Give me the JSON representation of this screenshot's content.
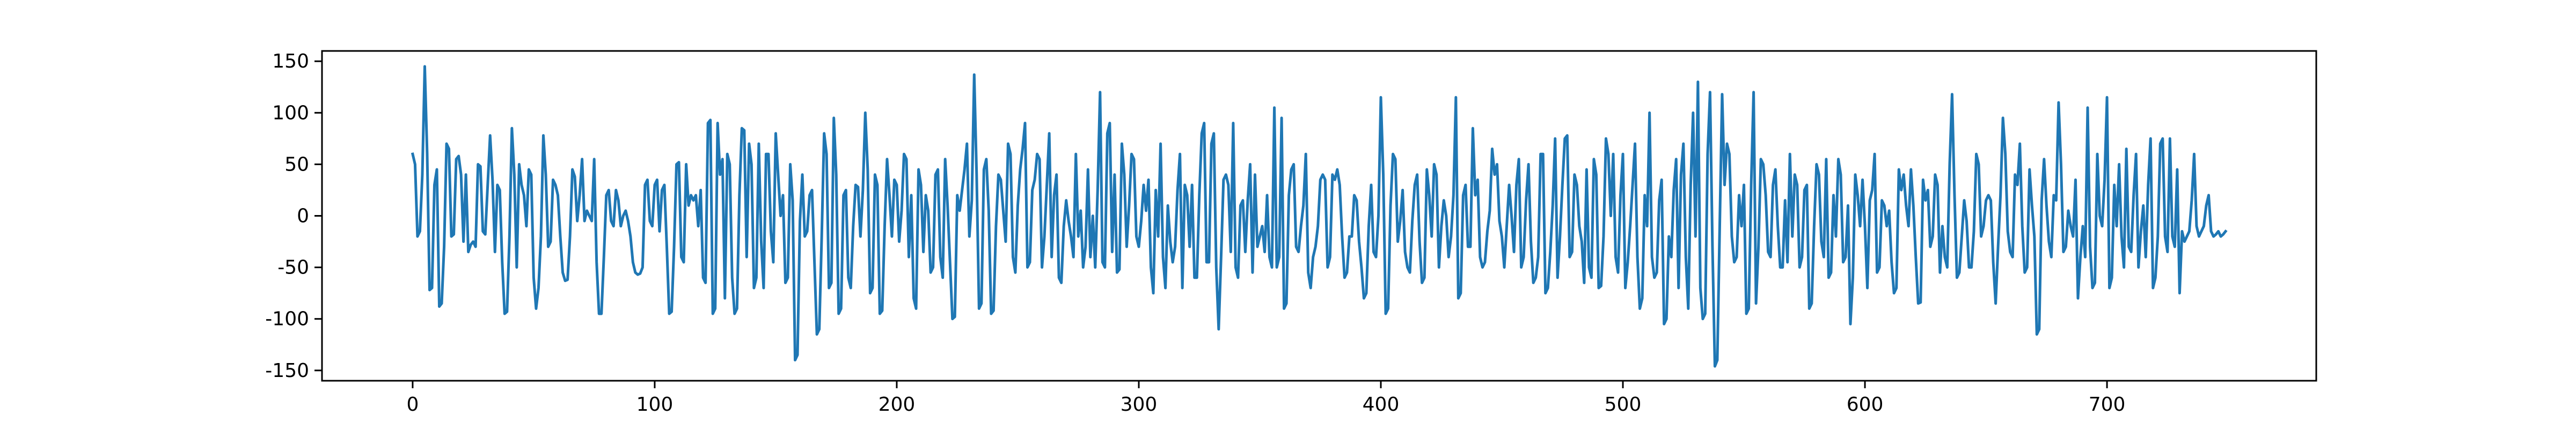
{
  "chart_data": {
    "type": "line",
    "color": "#1f77b4",
    "x": [
      0,
      1,
      2,
      3,
      4,
      5,
      6,
      7,
      8,
      9,
      10,
      11,
      12,
      13,
      14,
      15,
      16,
      17,
      18,
      19,
      20,
      21,
      22,
      23,
      24,
      25,
      26,
      27,
      28,
      29,
      30,
      31,
      32,
      33,
      34,
      35,
      36,
      37,
      38,
      39,
      40,
      41,
      42,
      43,
      44,
      45,
      46,
      47,
      48,
      49,
      50,
      51,
      52,
      53,
      54,
      55,
      56,
      57,
      58,
      59,
      60,
      61,
      62,
      63,
      64,
      65,
      66,
      67,
      68,
      69,
      70,
      71,
      72,
      73,
      74,
      75,
      76,
      77,
      78,
      79,
      80,
      81,
      82,
      83,
      84,
      85,
      86,
      87,
      88,
      89,
      90,
      91,
      92,
      93,
      94,
      95,
      96,
      97,
      98,
      99,
      100,
      101,
      102,
      103,
      104,
      105,
      106,
      107,
      108,
      109,
      110,
      111,
      112,
      113,
      114,
      115,
      116,
      117,
      118,
      119,
      120,
      121,
      122,
      123,
      124,
      125,
      126,
      127,
      128,
      129,
      130,
      131,
      132,
      133,
      134,
      135,
      136,
      137,
      138,
      139,
      140,
      141,
      142,
      143,
      144,
      145,
      146,
      147,
      148,
      149,
      150,
      151,
      152,
      153,
      154,
      155,
      156,
      157,
      158,
      159,
      160,
      161,
      162,
      163,
      164,
      165,
      166,
      167,
      168,
      169,
      170,
      171,
      172,
      173,
      174,
      175,
      176,
      177,
      178,
      179,
      180,
      181,
      182,
      183,
      184,
      185,
      186,
      187,
      188,
      189,
      190,
      191,
      192,
      193,
      194,
      195,
      196,
      197,
      198,
      199,
      200,
      201,
      202,
      203,
      204,
      205,
      206,
      207,
      208,
      209,
      210,
      211,
      212,
      213,
      214,
      215,
      216,
      217,
      218,
      219,
      220,
      221,
      222,
      223,
      224,
      225,
      226,
      227,
      228,
      229,
      230,
      231,
      232,
      233,
      234,
      235,
      236,
      237,
      238,
      239,
      240,
      241,
      242,
      243,
      244,
      245,
      246,
      247,
      248,
      249,
      250,
      251,
      252,
      253,
      254,
      255,
      256,
      257,
      258,
      259,
      260,
      261,
      262,
      263,
      264,
      265,
      266,
      267,
      268,
      269,
      270,
      271,
      272,
      273,
      274,
      275,
      276,
      277,
      278,
      279,
      280,
      281,
      282,
      283,
      284,
      285,
      286,
      287,
      288,
      289,
      290,
      291,
      292,
      293,
      294,
      295,
      296,
      297,
      298,
      299,
      300,
      301,
      302,
      303,
      304,
      305,
      306,
      307,
      308,
      309,
      310,
      311,
      312,
      313,
      314,
      315,
      316,
      317,
      318,
      319,
      320,
      321,
      322,
      323,
      324,
      325,
      326,
      327,
      328,
      329,
      330,
      331,
      332,
      333,
      334,
      335,
      336,
      337,
      338,
      339,
      340,
      341,
      342,
      343,
      344,
      345,
      346,
      347,
      348,
      349,
      350,
      351,
      352,
      353,
      354,
      355,
      356,
      357,
      358,
      359,
      360,
      361,
      362,
      363,
      364,
      365,
      366,
      367,
      368,
      369,
      370,
      371,
      372,
      373,
      374,
      375,
      376,
      377,
      378,
      379,
      380,
      381,
      382,
      383,
      384,
      385,
      386,
      387,
      388,
      389,
      390,
      391,
      392,
      393,
      394,
      395,
      396,
      397,
      398,
      399,
      400,
      401,
      402,
      403,
      404,
      405,
      406,
      407,
      408,
      409,
      410,
      411,
      412,
      413,
      414,
      415,
      416,
      417,
      418,
      419,
      420,
      421,
      422,
      423,
      424,
      425,
      426,
      427,
      428,
      429,
      430,
      431,
      432,
      433,
      434,
      435,
      436,
      437,
      438,
      439,
      440,
      441,
      442,
      443,
      444,
      445,
      446,
      447,
      448,
      449,
      450,
      451,
      452,
      453,
      454,
      455,
      456,
      457,
      458,
      459,
      460,
      461,
      462,
      463,
      464,
      465,
      466,
      467,
      468,
      469,
      470,
      471,
      472,
      473,
      474,
      475,
      476,
      477,
      478,
      479,
      480,
      481,
      482,
      483,
      484,
      485,
      486,
      487,
      488,
      489,
      490,
      491,
      492,
      493,
      494,
      495,
      496,
      497,
      498,
      499,
      500,
      501,
      502,
      503,
      504,
      505,
      506,
      507,
      508,
      509,
      510,
      511,
      512,
      513,
      514,
      515,
      516,
      517,
      518,
      519,
      520,
      521,
      522,
      523,
      524,
      525,
      526,
      527,
      528,
      529,
      530,
      531,
      532,
      533,
      534,
      535,
      536,
      537,
      538,
      539,
      540,
      541,
      542,
      543,
      544,
      545,
      546,
      547,
      548,
      549,
      550,
      551,
      552,
      553,
      554,
      555,
      556,
      557,
      558,
      559,
      560,
      561,
      562,
      563,
      564,
      565,
      566,
      567,
      568,
      569,
      570,
      571,
      572,
      573,
      574,
      575,
      576,
      577,
      578,
      579,
      580,
      581,
      582,
      583,
      584,
      585,
      586,
      587,
      588,
      589,
      590,
      591,
      592,
      593,
      594,
      595,
      596,
      597,
      598,
      599,
      600,
      601,
      602,
      603,
      604,
      605,
      606,
      607,
      608,
      609,
      610,
      611,
      612,
      613,
      614,
      615,
      616,
      617,
      618,
      619,
      620,
      621,
      622,
      623,
      624,
      625,
      626,
      627,
      628,
      629,
      630,
      631,
      632,
      633,
      634,
      635,
      636,
      637,
      638,
      639,
      640,
      641,
      642,
      643,
      644,
      645,
      646,
      647,
      648,
      649,
      650,
      651,
      652,
      653,
      654,
      655,
      656,
      657,
      658,
      659,
      660,
      661,
      662,
      663,
      664,
      665,
      666,
      667,
      668,
      669,
      670,
      671,
      672,
      673,
      674,
      675,
      676,
      677,
      678,
      679,
      680,
      681,
      682,
      683,
      684,
      685,
      686,
      687,
      688,
      689,
      690,
      691,
      692,
      693,
      694,
      695,
      696,
      697,
      698,
      699,
      700,
      701,
      702,
      703,
      704,
      705,
      706,
      707,
      708,
      709,
      710,
      711,
      712,
      713,
      714,
      715,
      716,
      717,
      718,
      719,
      720,
      721,
      722,
      723,
      724,
      725,
      726,
      727,
      728,
      729,
      730,
      731,
      732,
      733,
      734,
      735,
      736,
      737,
      738,
      739,
      740,
      741,
      742,
      743,
      744,
      745,
      746,
      747,
      748,
      749
    ],
    "values": [
      60,
      50,
      -20,
      -15,
      40,
      145,
      60,
      -72,
      -70,
      30,
      45,
      -88,
      -85,
      -30,
      70,
      65,
      -20,
      -18,
      55,
      58,
      40,
      -25,
      40,
      -35,
      -28,
      -25,
      -30,
      50,
      48,
      -15,
      -18,
      30,
      78,
      35,
      -35,
      30,
      25,
      -45,
      -95,
      -93,
      -20,
      85,
      40,
      -50,
      50,
      30,
      20,
      -10,
      45,
      40,
      -60,
      -90,
      -70,
      -20,
      78,
      40,
      -30,
      -25,
      35,
      30,
      20,
      -20,
      -55,
      -63,
      -62,
      -20,
      45,
      38,
      -5,
      20,
      55,
      -5,
      5,
      0,
      -5,
      55,
      -45,
      -95,
      -95,
      -40,
      20,
      25,
      -5,
      -10,
      25,
      15,
      -10,
      0,
      5,
      -5,
      -20,
      -45,
      -55,
      -57,
      -56,
      -50,
      30,
      35,
      -5,
      -10,
      30,
      35,
      -15,
      25,
      30,
      -30,
      -95,
      -93,
      -30,
      50,
      52,
      -40,
      -45,
      50,
      10,
      20,
      15,
      20,
      -10,
      25,
      -60,
      -65,
      90,
      93,
      -95,
      -90,
      90,
      40,
      55,
      -80,
      60,
      50,
      -60,
      -95,
      -90,
      20,
      85,
      83,
      -40,
      70,
      50,
      -70,
      -60,
      70,
      -25,
      -70,
      60,
      60,
      -15,
      -45,
      80,
      40,
      0,
      20,
      -65,
      -60,
      50,
      15,
      -140,
      -135,
      -5,
      40,
      -20,
      -15,
      20,
      25,
      -45,
      -115,
      -110,
      -20,
      80,
      60,
      -70,
      -65,
      95,
      40,
      -95,
      -90,
      20,
      25,
      -60,
      -70,
      -10,
      30,
      28,
      -20,
      25,
      100,
      45,
      -75,
      -70,
      40,
      30,
      -95,
      -92,
      -10,
      55,
      20,
      -20,
      35,
      30,
      -25,
      5,
      60,
      55,
      -40,
      20,
      -80,
      -90,
      45,
      30,
      -35,
      20,
      5,
      -55,
      -50,
      40,
      45,
      -40,
      -60,
      55,
      10,
      -45,
      -100,
      -98,
      20,
      5,
      25,
      45,
      70,
      -20,
      15,
      137,
      40,
      -90,
      -85,
      45,
      55,
      5,
      -95,
      -92,
      -10,
      40,
      35,
      5,
      -25,
      70,
      60,
      -40,
      -55,
      10,
      45,
      65,
      90,
      -50,
      -45,
      25,
      35,
      60,
      55,
      -50,
      -20,
      30,
      80,
      -40,
      20,
      40,
      -60,
      -65,
      -10,
      15,
      -5,
      -20,
      -40,
      60,
      -20,
      5,
      -50,
      -30,
      45,
      -40,
      0,
      -50,
      25,
      120,
      -45,
      -50,
      80,
      90,
      -35,
      40,
      -55,
      -52,
      70,
      40,
      -30,
      10,
      60,
      55,
      -20,
      -30,
      -5,
      30,
      5,
      35,
      -50,
      -75,
      25,
      -20,
      70,
      -40,
      -70,
      10,
      -25,
      -45,
      -30,
      25,
      60,
      -70,
      30,
      20,
      -30,
      30,
      -60,
      -60,
      20,
      80,
      90,
      -45,
      -45,
      70,
      80,
      -50,
      -110,
      -40,
      35,
      40,
      30,
      -35,
      90,
      -50,
      -60,
      10,
      15,
      -35,
      15,
      50,
      -55,
      40,
      -30,
      -20,
      -10,
      -35,
      20,
      -40,
      -50,
      105,
      -50,
      -40,
      95,
      -90,
      -85,
      20,
      45,
      50,
      -30,
      -35,
      -10,
      10,
      60,
      -55,
      -70,
      -40,
      -30,
      -10,
      35,
      40,
      35,
      -50,
      -40,
      40,
      35,
      45,
      30,
      -20,
      -60,
      -55,
      -20,
      -20,
      20,
      15,
      -25,
      -50,
      -80,
      -75,
      -10,
      30,
      -35,
      -40,
      0,
      115,
      40,
      -95,
      -90,
      10,
      60,
      55,
      -25,
      -5,
      25,
      -35,
      -50,
      -55,
      -5,
      30,
      40,
      -25,
      -65,
      -60,
      45,
      20,
      -20,
      50,
      40,
      -50,
      -10,
      15,
      0,
      -40,
      -20,
      20,
      115,
      -80,
      -75,
      20,
      30,
      -30,
      -30,
      85,
      20,
      35,
      -40,
      -50,
      -45,
      -15,
      5,
      65,
      40,
      50,
      -5,
      -20,
      -50,
      -10,
      30,
      0,
      -35,
      30,
      55,
      -50,
      -40,
      15,
      50,
      -25,
      -65,
      -60,
      -40,
      60,
      60,
      -75,
      -70,
      -35,
      10,
      75,
      -60,
      -20,
      30,
      75,
      78,
      -40,
      -35,
      40,
      30,
      -10,
      -25,
      -65,
      45,
      -50,
      -60,
      55,
      40,
      -70,
      -68,
      -20,
      75,
      60,
      0,
      60,
      -40,
      -55,
      20,
      60,
      -70,
      -45,
      -10,
      30,
      70,
      -40,
      -90,
      -80,
      20,
      -10,
      100,
      -40,
      -60,
      -55,
      15,
      35,
      -105,
      -100,
      -20,
      -40,
      25,
      55,
      -70,
      40,
      70,
      -40,
      -90,
      30,
      100,
      -20,
      130,
      -70,
      -100,
      -95,
      60,
      120,
      -30,
      -146,
      -140,
      -10,
      118,
      30,
      70,
      60,
      -20,
      -45,
      -40,
      20,
      -10,
      30,
      -95,
      -90,
      30,
      120,
      -85,
      -30,
      55,
      50,
      20,
      -35,
      -40,
      30,
      45,
      -10,
      -50,
      -50,
      15,
      -45,
      60,
      -20,
      40,
      30,
      -50,
      -40,
      25,
      30,
      -90,
      -85,
      -10,
      50,
      40,
      -25,
      -40,
      55,
      -60,
      -55,
      20,
      -20,
      55,
      40,
      -45,
      -40,
      10,
      -105,
      -60,
      40,
      20,
      -10,
      35,
      -10,
      -70,
      15,
      25,
      60,
      -55,
      -50,
      15,
      10,
      -10,
      5,
      -45,
      -75,
      -70,
      45,
      25,
      40,
      10,
      -10,
      45,
      10,
      -40,
      -85,
      -84,
      35,
      15,
      25,
      -30,
      -20,
      40,
      30,
      -55,
      -10,
      -40,
      -50,
      50,
      118,
      20,
      -60,
      -55,
      -20,
      15,
      -5,
      -50,
      -50,
      -15,
      60,
      50,
      -20,
      -10,
      15,
      20,
      15,
      -45,
      -85,
      -30,
      20,
      95,
      60,
      -15,
      -35,
      -40,
      40,
      30,
      70,
      -10,
      -55,
      -50,
      45,
      10,
      -20,
      -115,
      -110,
      15,
      55,
      10,
      -25,
      -40,
      20,
      15,
      110,
      50,
      -35,
      -30,
      5,
      -10,
      -20,
      35,
      -80,
      -40,
      -10,
      -40,
      105,
      -30,
      -70,
      -65,
      60,
      0,
      -10,
      35,
      115,
      -70,
      -60,
      30,
      -10,
      50,
      -20,
      -50,
      65,
      -30,
      -35,
      20,
      60,
      -50,
      -15,
      10,
      -40,
      30,
      75,
      -70,
      -60,
      -20,
      70,
      75,
      -20,
      -35,
      75,
      -20,
      -30,
      45,
      -75,
      -15,
      -25,
      -20,
      -15,
      15,
      60,
      -10,
      -20,
      -15,
      -10,
      10,
      20,
      -15,
      -20,
      -18,
      -15,
      -20,
      -18,
      -15
    ],
    "xlim": [
      -37.45,
      786.45
    ],
    "xticks": [
      0,
      100,
      200,
      300,
      400,
      500,
      600,
      700
    ],
    "ylim": [
      -160,
      160
    ],
    "yticks": [
      -150,
      -100,
      -50,
      0,
      50,
      100,
      150
    ],
    "grid": false
  }
}
